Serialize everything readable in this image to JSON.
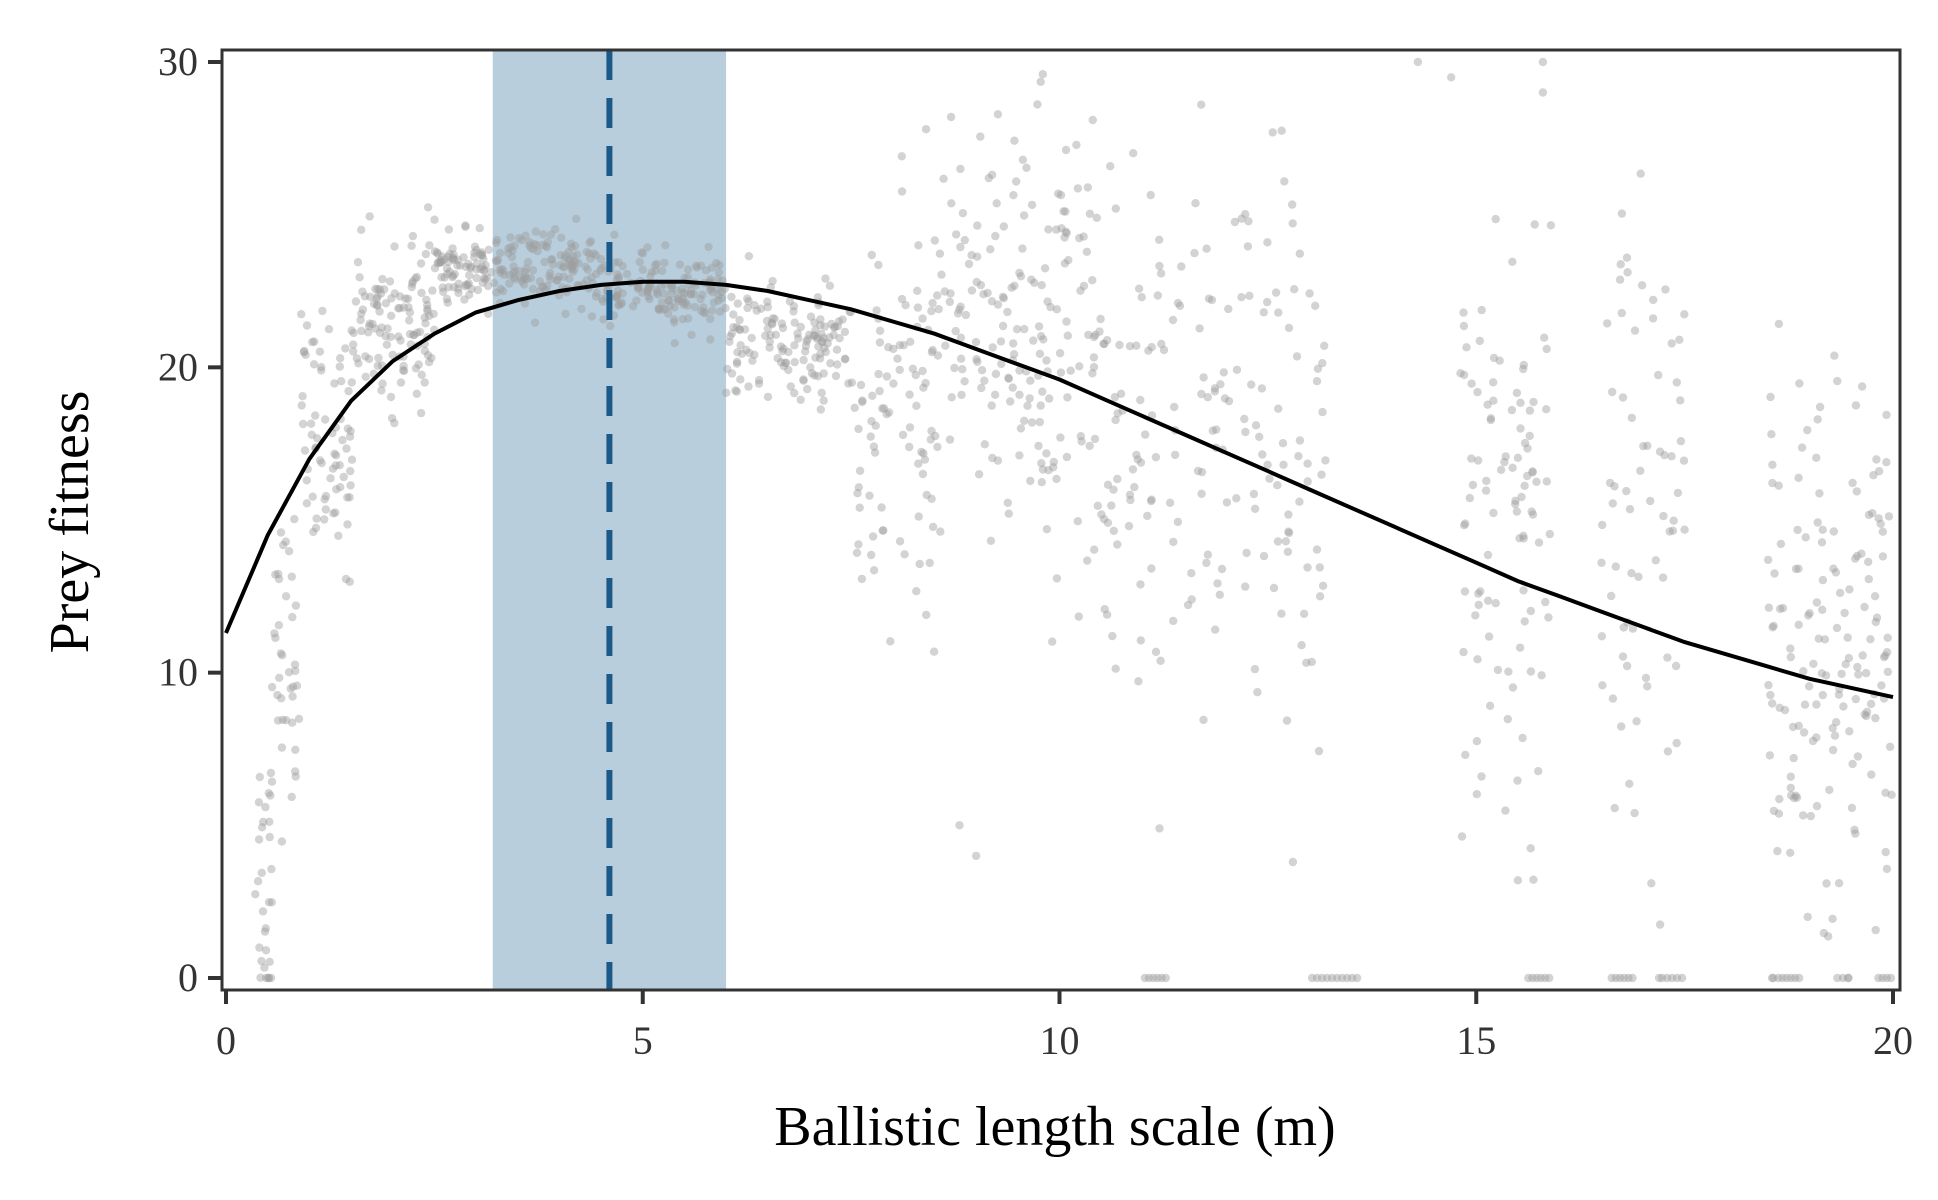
{
  "chart_data": {
    "type": "scatter",
    "title": "",
    "xlabel": "Ballistic length scale (m)",
    "ylabel": "Prey fitness",
    "xlim": [
      0,
      20
    ],
    "ylim": [
      0,
      30
    ],
    "x_ticks": [
      0,
      5,
      10,
      15,
      20
    ],
    "y_ticks": [
      0,
      10,
      20,
      30
    ],
    "x_tick_labels": [
      "0",
      "5",
      "10",
      "15",
      "20"
    ],
    "y_tick_labels": [
      "0",
      "10",
      "20",
      "30"
    ],
    "grid": false,
    "legend": "none",
    "colors": {
      "points": "#9e9e9e",
      "curve": "#000000",
      "band": "#b8cedd",
      "optimum_line": "#1a5a8a",
      "axis": "#333333"
    },
    "shaded_band": {
      "x_start": 3.2,
      "x_end": 6.0
    },
    "optimum_line": {
      "x": 4.6,
      "style": "dashed"
    },
    "fit_curve": {
      "x": [
        0,
        0.5,
        1,
        1.5,
        2,
        2.5,
        3,
        3.5,
        4,
        4.5,
        5,
        5.5,
        6,
        6.5,
        7,
        7.5,
        8,
        8.5,
        9,
        9.5,
        10,
        10.5,
        11,
        11.5,
        12,
        12.5,
        13,
        13.5,
        14,
        14.5,
        15,
        15.5,
        16,
        16.5,
        17,
        17.5,
        18,
        18.5,
        19,
        19.5,
        20
      ],
      "y": [
        11.3,
        14.5,
        17.0,
        18.9,
        20.2,
        21.1,
        21.8,
        22.2,
        22.5,
        22.7,
        22.8,
        22.8,
        22.7,
        22.5,
        22.2,
        21.9,
        21.5,
        21.1,
        20.6,
        20.1,
        19.6,
        19.0,
        18.4,
        17.8,
        17.2,
        16.6,
        16.0,
        15.4,
        14.8,
        14.2,
        13.6,
        13.0,
        12.5,
        12.0,
        11.5,
        11.0,
        10.6,
        10.2,
        9.8,
        9.5,
        9.2
      ]
    },
    "scatter_groups": [
      {
        "x_range": [
          0.35,
          0.55
        ],
        "y_mean": 3.5,
        "y_sd": 2.5,
        "n": 30
      },
      {
        "x_range": [
          0.55,
          0.9
        ],
        "y_mean": 10.5,
        "y_sd": 2.5,
        "n": 40
      },
      {
        "x_range": [
          0.9,
          1.5
        ],
        "y_mean": 17.5,
        "y_sd": 2.0,
        "n": 70
      },
      {
        "x_range": [
          1.5,
          2.5
        ],
        "y_mean": 21.5,
        "y_sd": 1.3,
        "n": 120
      },
      {
        "x_range": [
          2.5,
          4.5
        ],
        "y_mean": 23.2,
        "y_sd": 0.6,
        "n": 220
      },
      {
        "x_range": [
          4.5,
          6.0
        ],
        "y_mean": 22.5,
        "y_sd": 0.6,
        "n": 150
      },
      {
        "x_range": [
          6.0,
          7.5
        ],
        "y_mean": 20.8,
        "y_sd": 0.9,
        "n": 140
      },
      {
        "x_range": [
          7.5,
          8.5
        ],
        "y_mean": 18.0,
        "y_sd": 3.5,
        "n": 90
      },
      {
        "x_range": [
          8.5,
          10.5
        ],
        "y_mean": 21.0,
        "y_sd": 3.5,
        "n": 190
      },
      {
        "x_range": [
          10.5,
          11.5
        ],
        "y_mean": 17.0,
        "y_sd": 4.5,
        "n": 70
      },
      {
        "x_range": [
          11.5,
          13.2
        ],
        "y_mean": 17.5,
        "y_sd": 4.5,
        "n": 110
      },
      {
        "x_range": [
          14.8,
          15.9
        ],
        "y_mean": 15.0,
        "y_sd": 4.5,
        "n": 100
      },
      {
        "x_range": [
          16.5,
          17.5
        ],
        "y_mean": 14.0,
        "y_sd": 5.5,
        "n": 70
      },
      {
        "x_range": [
          18.5,
          20.0
        ],
        "y_mean": 11.0,
        "y_sd": 4.5,
        "n": 160
      }
    ],
    "zero_clusters": [
      {
        "x_range": [
          11.0,
          11.3
        ],
        "y": 0,
        "n": 6
      },
      {
        "x_range": [
          13.0,
          13.6
        ],
        "y": 0,
        "n": 10
      },
      {
        "x_range": [
          15.6,
          15.9
        ],
        "y": 0,
        "n": 6
      },
      {
        "x_range": [
          16.6,
          16.9
        ],
        "y": 0,
        "n": 6
      },
      {
        "x_range": [
          17.2,
          17.5
        ],
        "y": 0,
        "n": 5
      },
      {
        "x_range": [
          18.6,
          18.9
        ],
        "y": 0,
        "n": 6
      },
      {
        "x_range": [
          19.3,
          19.5
        ],
        "y": 0,
        "n": 3
      },
      {
        "x_range": [
          19.8,
          20.0
        ],
        "y": 0,
        "n": 4
      }
    ],
    "sparse_outliers": [
      [
        8.4,
        27.8
      ],
      [
        8.7,
        28.2
      ],
      [
        9.8,
        29.6
      ],
      [
        10.4,
        28.1
      ],
      [
        11.7,
        28.6
      ],
      [
        14.3,
        30
      ],
      [
        14.7,
        29.5
      ],
      [
        15.8,
        30
      ],
      [
        15.8,
        29.0
      ],
      [
        9.0,
        4.0
      ],
      [
        8.8,
        5.0
      ],
      [
        12.8,
        3.8
      ],
      [
        11.2,
        4.9
      ],
      [
        15.5,
        3.2
      ],
      [
        16.9,
        5.4
      ],
      [
        17.1,
        3.1
      ]
    ]
  }
}
